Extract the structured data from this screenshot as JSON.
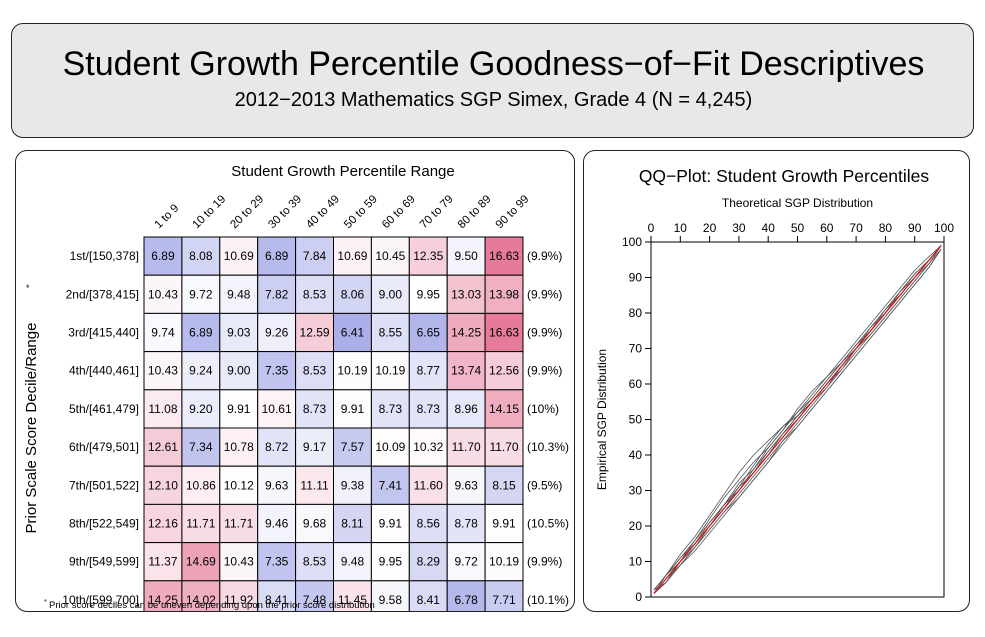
{
  "header": {
    "title": "Student Growth Percentile Goodness−of−Fit Descriptives",
    "subtitle": "2012−2013 Mathematics SGP Simex, Grade 4 (N = 4,245)"
  },
  "table_panel": {
    "title": "Student Growth Percentile Range",
    "ylabel": "Prior Scale Score Decile/Range",
    "ylabel_marker": "*",
    "footnote_marker": "*",
    "footnote": "Prior score deciles can be uneven depending upon the prior score distribution"
  },
  "qq_panel": {
    "title": "QQ−Plot: Student Growth Percentiles",
    "xlabel": "Theoretical SGP Distribution",
    "ylabel": "Empirical SGP Distribution"
  },
  "colors": {
    "high": "#e57a98",
    "low": "#8a90e0",
    "reference_line": "#e01010",
    "curves": "#555555"
  },
  "chart_data": [
    {
      "type": "heatmap",
      "title": "Student Growth Percentile Range",
      "ylabel": "Prior Scale Score Decile/Range",
      "columns": [
        "1 to 9",
        "10 to 19",
        "20 to 29",
        "30 to 39",
        "40 to 49",
        "50 to 59",
        "60 to 69",
        "70 to 79",
        "80 to 89",
        "90 to 99"
      ],
      "rows": [
        "1st/[150,378]",
        "2nd/[378,415]",
        "3rd/[415,440]",
        "4th/[440,461]",
        "5th/[461,479]",
        "6th/[479,501]",
        "7th/[501,522]",
        "8th/[522,549]",
        "9th/[549,599]",
        "10th/[599,700]"
      ],
      "row_percents": [
        "(9.9%)",
        "(9.9%)",
        "(9.9%)",
        "(9.9%)",
        "(10%)",
        "(10.3%)",
        "(9.5%)",
        "(10.5%)",
        "(9.9%)",
        "(10.1%)"
      ],
      "values": [
        [
          "6.89",
          "8.08",
          "10.69",
          "6.89",
          "7.84",
          "10.69",
          "10.45",
          "12.35",
          "9.50",
          "16.63"
        ],
        [
          "10.43",
          "9.72",
          "9.48",
          "7.82",
          "8.53",
          "8.06",
          "9.00",
          "9.95",
          "13.03",
          "13.98"
        ],
        [
          "9.74",
          "6.89",
          "9.03",
          "9.26",
          "12.59",
          "6.41",
          "8.55",
          "6.65",
          "14.25",
          "16.63"
        ],
        [
          "10.43",
          "9.24",
          "9.00",
          "7.35",
          "8.53",
          "10.19",
          "10.19",
          "8.77",
          "13.74",
          "12.56"
        ],
        [
          "11.08",
          "9.20",
          "9.91",
          "10.61",
          "8.73",
          "9.91",
          "8.73",
          "8.73",
          "8.96",
          "14.15"
        ],
        [
          "12.61",
          "7.34",
          "10.78",
          "8.72",
          "9.17",
          "7.57",
          "10.09",
          "10.32",
          "11.70",
          "11.70"
        ],
        [
          "12.10",
          "10.86",
          "10.12",
          "9.63",
          "11.11",
          "9.38",
          "7.41",
          "11.60",
          "9.63",
          "8.15"
        ],
        [
          "12.16",
          "11.71",
          "11.71",
          "9.46",
          "9.68",
          "8.11",
          "9.91",
          "8.56",
          "8.78",
          "9.91"
        ],
        [
          "11.37",
          "14.69",
          "10.43",
          "7.35",
          "8.53",
          "9.48",
          "9.95",
          "8.29",
          "9.72",
          "10.19"
        ],
        [
          "14.25",
          "14.02",
          "11.92",
          "8.41",
          "7.48",
          "11.45",
          "9.58",
          "8.41",
          "6.78",
          "7.71"
        ]
      ]
    },
    {
      "type": "line",
      "title": "QQ−Plot: Student Growth Percentiles",
      "xlabel": "Theoretical SGP Distribution",
      "ylabel": "Empirical SGP Distribution",
      "xlim": [
        0,
        100
      ],
      "ylim": [
        0,
        100
      ],
      "xticks": [
        "0",
        "10",
        "20",
        "30",
        "40",
        "50",
        "60",
        "70",
        "80",
        "90",
        "100"
      ],
      "yticks": [
        "0",
        "10",
        "20",
        "30",
        "40",
        "50",
        "60",
        "70",
        "80",
        "90",
        "100"
      ],
      "reference_line": [
        [
          1,
          1
        ],
        [
          99,
          99
        ]
      ],
      "x": [
        1,
        5,
        10,
        15,
        20,
        25,
        30,
        35,
        40,
        45,
        50,
        55,
        60,
        65,
        70,
        75,
        80,
        85,
        90,
        95,
        99
      ],
      "series": [
        {
          "values": [
            1,
            5,
            10,
            14,
            20,
            25,
            31,
            37,
            43,
            48,
            51,
            55,
            60,
            64,
            70,
            76,
            80,
            86,
            91,
            95,
            99
          ]
        },
        {
          "values": [
            1,
            6,
            11,
            16,
            21,
            26,
            30,
            35,
            41,
            46,
            51,
            56,
            61,
            66,
            71,
            75,
            81,
            85,
            90,
            94,
            98
          ]
        },
        {
          "values": [
            2,
            4,
            9,
            13,
            18,
            23,
            28,
            33,
            38,
            44,
            49,
            54,
            59,
            64,
            69,
            74,
            79,
            84,
            89,
            94,
            99
          ]
        },
        {
          "values": [
            1,
            6,
            12,
            17,
            23,
            29,
            35,
            40,
            44,
            48,
            52,
            56,
            61,
            66,
            71,
            76,
            81,
            86,
            90,
            95,
            99
          ]
        },
        {
          "values": [
            1,
            4,
            9,
            14,
            19,
            24,
            29,
            34,
            39,
            44,
            48,
            53,
            58,
            63,
            68,
            73,
            78,
            83,
            88,
            93,
            98
          ]
        },
        {
          "values": [
            2,
            6,
            10,
            15,
            20,
            26,
            32,
            36,
            41,
            46,
            50,
            55,
            59,
            65,
            70,
            74,
            79,
            84,
            89,
            94,
            99
          ]
        },
        {
          "values": [
            1,
            5,
            10,
            16,
            22,
            28,
            33,
            38,
            42,
            47,
            52,
            57,
            62,
            67,
            72,
            77,
            82,
            87,
            92,
            96,
            99
          ]
        },
        {
          "values": [
            1,
            5,
            9,
            14,
            19,
            24,
            28,
            33,
            38,
            43,
            48,
            53,
            58,
            63,
            68,
            73,
            78,
            83,
            88,
            93,
            98
          ]
        },
        {
          "values": [
            2,
            6,
            11,
            15,
            20,
            25,
            30,
            36,
            42,
            47,
            53,
            58,
            62,
            66,
            70,
            75,
            80,
            85,
            90,
            95,
            99
          ]
        },
        {
          "values": [
            1,
            4,
            10,
            15,
            21,
            26,
            31,
            35,
            40,
            46,
            51,
            55,
            60,
            65,
            70,
            75,
            80,
            86,
            91,
            95,
            99
          ]
        }
      ]
    }
  ]
}
